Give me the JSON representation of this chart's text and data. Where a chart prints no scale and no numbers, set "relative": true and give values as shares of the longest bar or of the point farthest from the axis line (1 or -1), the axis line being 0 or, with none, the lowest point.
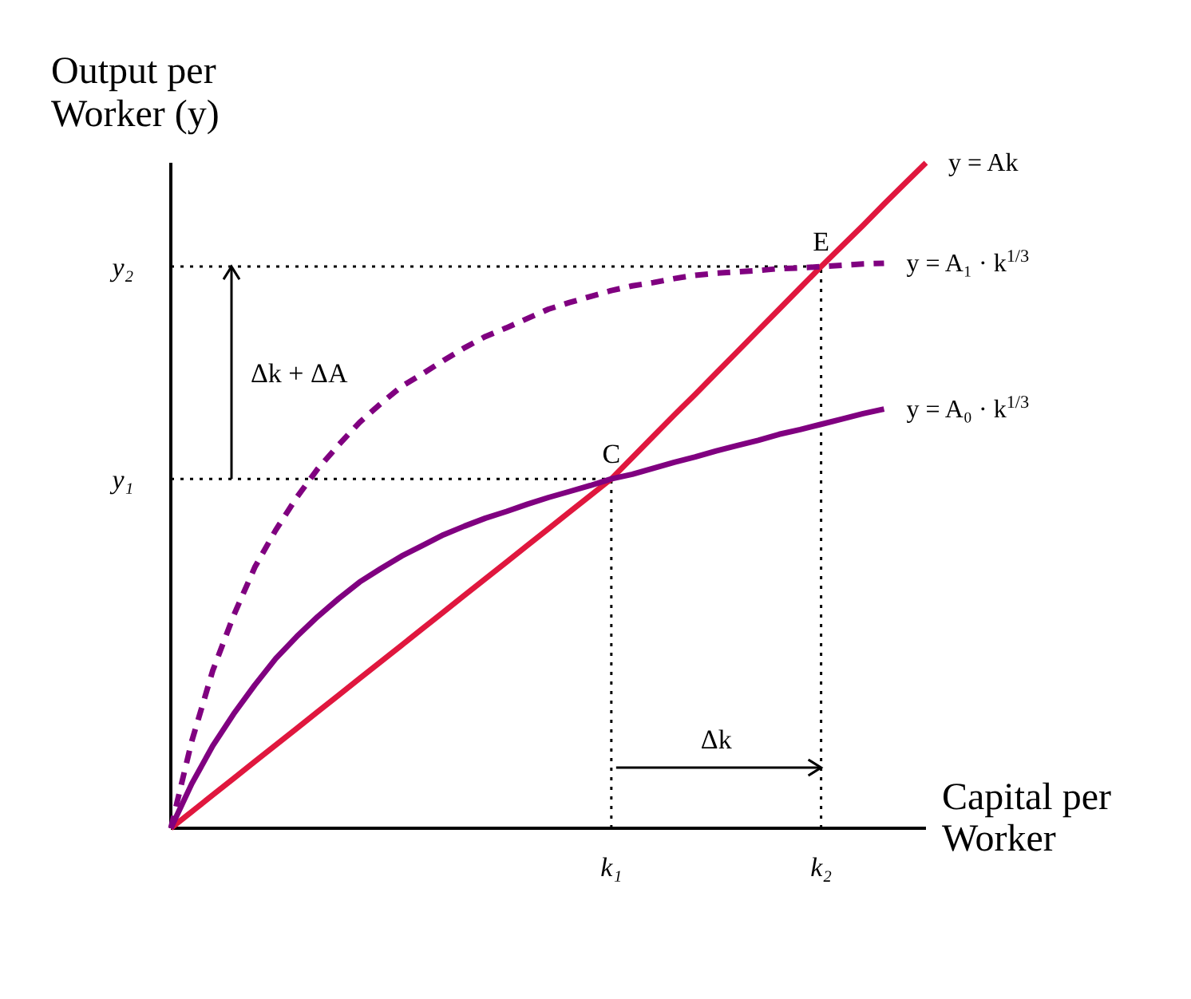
{
  "chart_data": {
    "type": "line",
    "relative": true,
    "xlabel": "Capital per Worker",
    "ylabel": "Output per Worker (y)",
    "categories": [
      null,
      null,
      null,
      null,
      null,
      null,
      null,
      null,
      null,
      null,
      null,
      null,
      null,
      null,
      null,
      null,
      null,
      null,
      null,
      null,
      null,
      "k₁",
      null,
      null,
      null,
      null,
      null,
      null,
      null,
      null,
      null,
      "k₂",
      null,
      null,
      null,
      null,
      null
    ],
    "series": [
      {
        "name": "y = Ak",
        "color": "#e0173e",
        "values": [
          0,
          0.025,
          0.05,
          0.075,
          0.1,
          0.125,
          0.15,
          0.175,
          0.2,
          0.225,
          0.25,
          0.275,
          0.3,
          0.325,
          0.35,
          0.375,
          0.4,
          0.425,
          0.45,
          0.475,
          0.5,
          0.525,
          0.557,
          0.589,
          0.621,
          0.652,
          0.684,
          0.716,
          0.748,
          0.78,
          0.812,
          0.844,
          0.875,
          0.906,
          0.938,
          0.969,
          1
        ]
      },
      {
        "name": "y = A₁ · k$^{1/3}$",
        "color": "#800080",
        "line_style": "dashed",
        "values": [
          0,
          0.131,
          0.237,
          0.32,
          0.392,
          0.448,
          0.497,
          0.54,
          0.576,
          0.61,
          0.638,
          0.664,
          0.683,
          0.703,
          0.722,
          0.739,
          0.752,
          0.766,
          0.78,
          0.79,
          0.799,
          0.808,
          0.815,
          0.82,
          0.826,
          0.831,
          0.834,
          0.836,
          0.838,
          0.841,
          0.842,
          0.844,
          0.846,
          0.848,
          0.849,
          null,
          null
        ]
      },
      {
        "name": "y = A₀ · k$^{1/3}$",
        "color": "#800080",
        "values": [
          0,
          0.067,
          0.124,
          0.172,
          0.215,
          0.255,
          0.288,
          0.318,
          0.345,
          0.37,
          0.39,
          0.409,
          0.425,
          0.441,
          0.454,
          0.466,
          0.476,
          0.487,
          0.497,
          0.506,
          0.515,
          0.525,
          0.532,
          0.541,
          0.55,
          0.558,
          0.567,
          0.575,
          0.583,
          0.592,
          0.599,
          0.607,
          0.615,
          0.623,
          0.63,
          null,
          null
        ]
      }
    ],
    "ref_lines": [
      {
        "axis": "x",
        "value": "k₁",
        "line_style": "dotted"
      },
      {
        "axis": "x",
        "value": "k₂",
        "line_style": "dotted"
      },
      {
        "axis": "y",
        "value": 0.525,
        "label": "y₁",
        "line_style": "dotted"
      },
      {
        "axis": "y",
        "value": 0.844,
        "label": "y₂",
        "line_style": "dotted"
      }
    ],
    "annotations": [
      {
        "text": "C",
        "x": "k₁",
        "y": 0.525
      },
      {
        "text": "E",
        "x": "k₂",
        "y": 0.844
      },
      "Δk + ΔA",
      "Δk"
    ]
  }
}
